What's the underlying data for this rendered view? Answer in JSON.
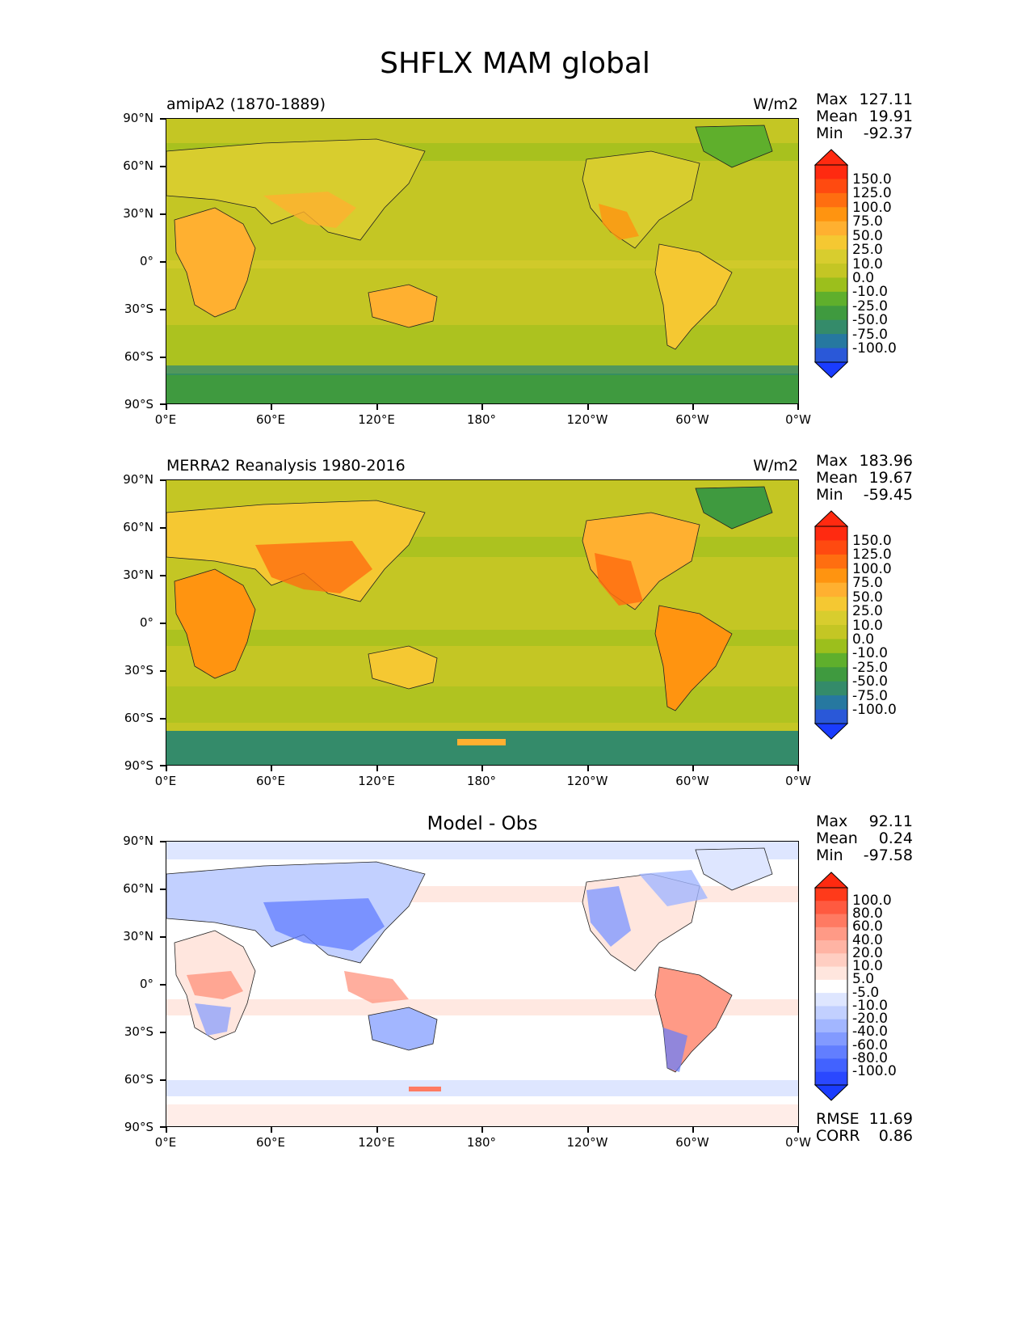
{
  "title": "SHFLX MAM global",
  "x_ticks": [
    "0°E",
    "60°E",
    "120°E",
    "180°",
    "120°W",
    "60°W",
    "0°W"
  ],
  "y_ticks": [
    "90°N",
    "60°N",
    "30°N",
    "0°",
    "30°S",
    "60°S",
    "90°S"
  ],
  "stat_labels": {
    "max": "Max",
    "mean": "Mean",
    "min": "Min",
    "rmse": "RMSE",
    "corr": "CORR"
  },
  "panels": [
    {
      "title": "amipA2 (1870-1889)",
      "units": "W/m2",
      "stats": {
        "max": "127.11",
        "mean": "19.91",
        "min": "-92.37"
      },
      "colorbar": {
        "labels": [
          "150.0",
          "125.0",
          "100.0",
          "75.0",
          "50.0",
          "25.0",
          "10.0",
          "0.0",
          "-10.0",
          "-25.0",
          "-50.0",
          "-75.0",
          "-100.0"
        ],
        "colors": [
          "#ff2a10",
          "#ff4a10",
          "#ff6e10",
          "#ff9410",
          "#ffb030",
          "#f5c832",
          "#d8cd2e",
          "#c4c624",
          "#9cbf1c",
          "#5faf2c",
          "#3f9a3f",
          "#348b6a",
          "#2678a0",
          "#2a58d8"
        ],
        "over_color": "#ff2a10",
        "under_color": "#1a3cff"
      }
    },
    {
      "title": "MERRA2 Reanalysis 1980-2016",
      "units": "W/m2",
      "stats": {
        "max": "183.96",
        "mean": "19.67",
        "min": "-59.45"
      },
      "colorbar": {
        "labels": [
          "150.0",
          "125.0",
          "100.0",
          "75.0",
          "50.0",
          "25.0",
          "10.0",
          "0.0",
          "-10.0",
          "-25.0",
          "-50.0",
          "-75.0",
          "-100.0"
        ],
        "colors": [
          "#ff2a10",
          "#ff4a10",
          "#ff6e10",
          "#ff9410",
          "#ffb030",
          "#f5c832",
          "#d8cd2e",
          "#c4c624",
          "#9cbf1c",
          "#5faf2c",
          "#3f9a3f",
          "#348b6a",
          "#2678a0",
          "#2a58d8"
        ],
        "over_color": "#ff2a10",
        "under_color": "#1a3cff"
      }
    },
    {
      "title": "Model - Obs",
      "units": "",
      "stats": {
        "max": "92.11",
        "mean": "0.24",
        "min": "-97.58",
        "rmse": "11.69",
        "corr": "0.86"
      },
      "colorbar": {
        "labels": [
          "100.0",
          "80.0",
          "60.0",
          "40.0",
          "20.0",
          "10.0",
          "5.0",
          "-5.0",
          "-10.0",
          "-20.0",
          "-40.0",
          "-60.0",
          "-80.0",
          "-100.0"
        ],
        "colors": [
          "#ff3a1a",
          "#ff5a40",
          "#ff7a62",
          "#ff9a86",
          "#ffb4a4",
          "#ffcec2",
          "#ffe6de",
          "#ffffff",
          "#dee6ff",
          "#c2d0ff",
          "#a2b6ff",
          "#829aff",
          "#627eff",
          "#4262ff",
          "#2a48ff"
        ],
        "over_color": "#ff2a10",
        "under_color": "#1a3cff"
      }
    }
  ]
}
